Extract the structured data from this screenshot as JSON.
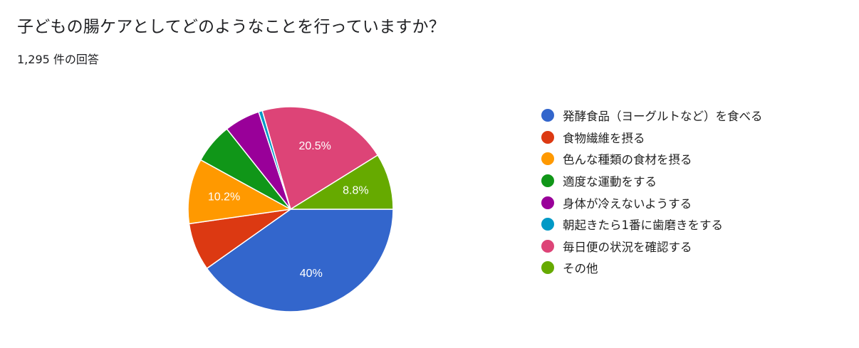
{
  "header": {
    "question": "子どもの腸ケアとしてどのようなことを行っていますか？",
    "response_count": "1,295 件の回答"
  },
  "chart_data": {
    "type": "pie",
    "labels": [
      "発酵食品（ヨーグルトなど）を食べる",
      "食物繊維を摂る",
      "色んな種類の食材を摂る",
      "適度な運動をする",
      "身体が冷えないようする",
      "朝起きたら1番に歯磨きをする",
      "毎日便の状況を確認する",
      "その他"
    ],
    "values": [
      40.0,
      7.5,
      10.2,
      6.3,
      5.6,
      0.6,
      20.5,
      8.8
    ],
    "data_labels": [
      "40%",
      "",
      "10.2%",
      "",
      "",
      "",
      "20.5%",
      "8.8%"
    ],
    "colors": [
      "#3366CC",
      "#DC3912",
      "#FF9900",
      "#109618",
      "#990099",
      "#0099C6",
      "#DD4477",
      "#66AA00"
    ],
    "legend_position": "right",
    "start": "3 o'clock",
    "direction": "clockwise"
  }
}
